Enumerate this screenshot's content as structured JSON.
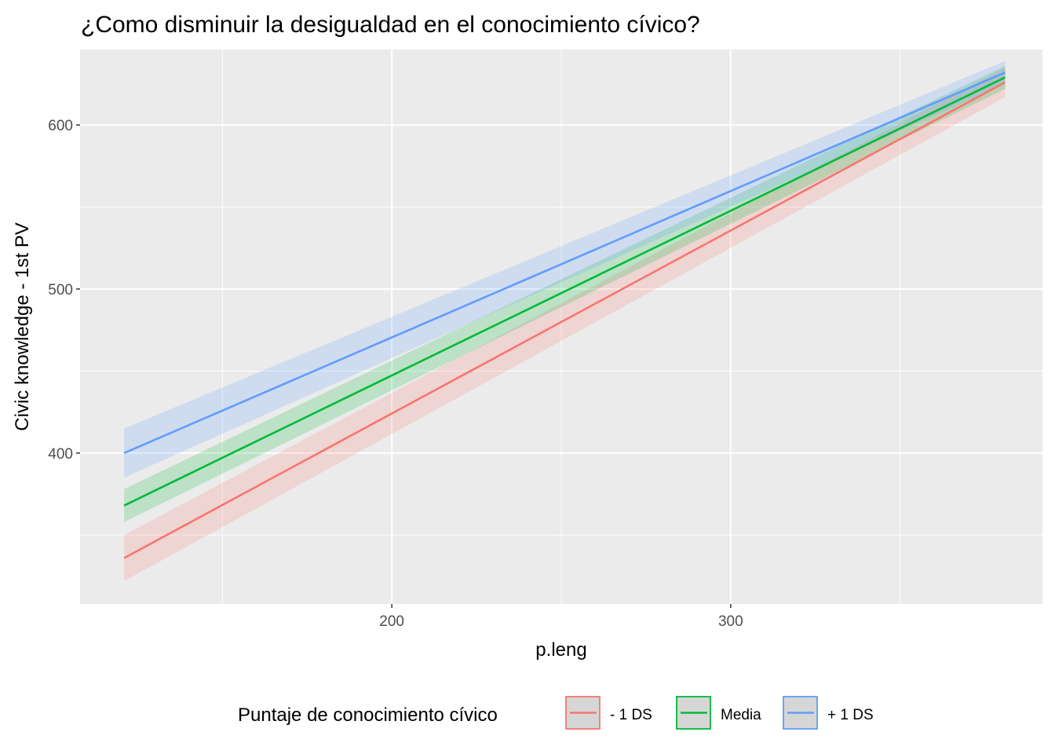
{
  "chart_data": {
    "type": "line",
    "title": "¿Como disminuir la desigualdad en el conocimiento cívico?",
    "xlabel": "p.leng",
    "ylabel": "Civic knowledge - 1st PV",
    "xlim": [
      108,
      392
    ],
    "ylim": [
      308,
      646
    ],
    "x_ticks": [
      200,
      300
    ],
    "x_tick_labels": [
      "200",
      "300"
    ],
    "x_minor_ticks": [
      150,
      250,
      350
    ],
    "y_ticks": [
      400,
      500,
      600
    ],
    "y_tick_labels": [
      "400",
      "500",
      "600"
    ],
    "y_minor_ticks": [
      350,
      450,
      550
    ],
    "grid": true,
    "panel_background": "#ebebeb",
    "legend": {
      "title": "Puntaje de conocimiento cívico",
      "position": "bottom"
    },
    "series": [
      {
        "name": "- 1 DS",
        "color": "#f8766d",
        "x": [
          121,
          381
        ],
        "y": [
          336,
          626
        ],
        "ci_lower": [
          322,
          617
        ],
        "ci_upper": [
          350,
          635
        ]
      },
      {
        "name": "Media",
        "color": "#00ba38",
        "x": [
          121,
          381
        ],
        "y": [
          368,
          629
        ],
        "ci_lower": [
          358,
          622
        ],
        "ci_upper": [
          378,
          636
        ]
      },
      {
        "name": "+ 1 DS",
        "color": "#619cff",
        "x": [
          121,
          381
        ],
        "y": [
          400,
          632
        ],
        "ci_lower": [
          385,
          625
        ],
        "ci_upper": [
          415,
          639
        ]
      }
    ]
  }
}
